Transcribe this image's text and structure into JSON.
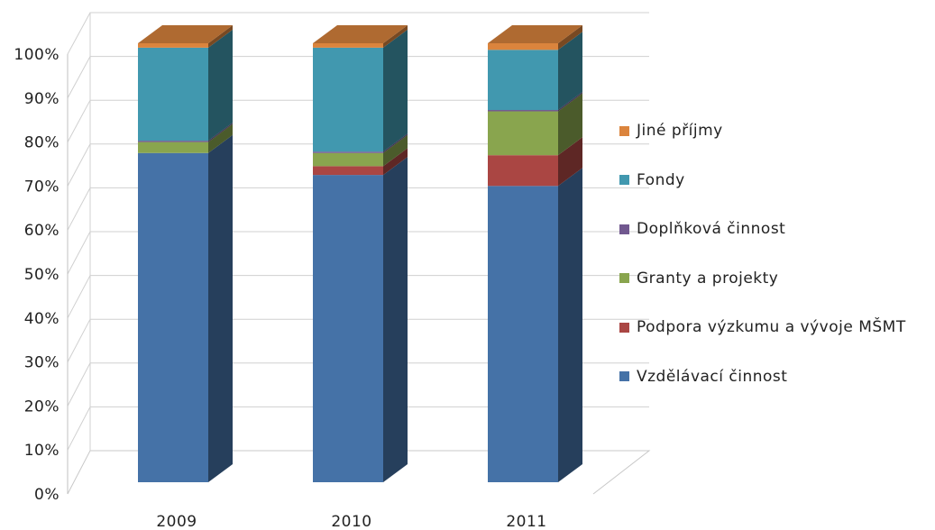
{
  "chart_data": {
    "type": "bar",
    "stacked": true,
    "percent": true,
    "three_d": true,
    "categories": [
      "2009",
      "2010",
      "2011"
    ],
    "y_ticks": [
      "0%",
      "10%",
      "20%",
      "30%",
      "40%",
      "50%",
      "60%",
      "70%",
      "80%",
      "90%",
      "100%"
    ],
    "ylim": [
      0,
      100
    ],
    "grid": true,
    "legend_position": "right",
    "series": [
      {
        "name": "Vzdělávací činnost",
        "color": "#4572A7",
        "values": [
          75,
          70,
          67.5
        ]
      },
      {
        "name": "Podpora výzkumu a vývoje MŠMT",
        "color": "#AA4643",
        "values": [
          0,
          2,
          7
        ]
      },
      {
        "name": "Granty a projekty",
        "color": "#89A54E",
        "values": [
          2.5,
          3,
          10
        ]
      },
      {
        "name": "Doplňková činnost",
        "color": "#71588F",
        "values": [
          0.3,
          0.3,
          0.3
        ]
      },
      {
        "name": "Fondy",
        "color": "#4198AF",
        "values": [
          21.2,
          23.7,
          13.7
        ]
      },
      {
        "name": "Jiné příjmy",
        "color": "#DB843D",
        "values": [
          1,
          1,
          1.5
        ]
      }
    ]
  }
}
